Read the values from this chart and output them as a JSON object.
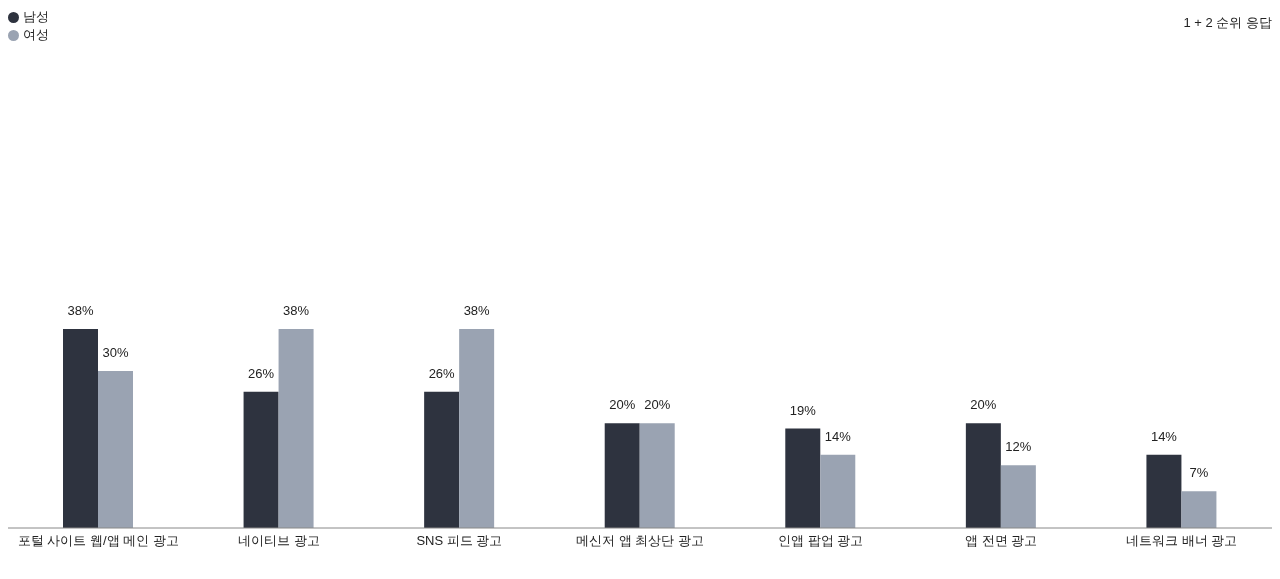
{
  "chart_data": {
    "type": "bar",
    "categories": [
      "포털 사이트 웹/앱 메인 광고",
      "네이티브 광고",
      "SNS 피드 광고",
      "메신저 앱 최상단 광고",
      "인앱 팝업 광고",
      "앱 전면 광고",
      "네트워크 배너 광고"
    ],
    "series": [
      {
        "name": "남성",
        "color": "#2e333f",
        "values": [
          38,
          26,
          26,
          20,
          19,
          20,
          14
        ],
        "value_labels": [
          "38%",
          "26%",
          "26%",
          "20%",
          "19%",
          "20%",
          "14%"
        ]
      },
      {
        "name": "여성",
        "color": "#9aa3b2",
        "values": [
          30,
          38,
          38,
          20,
          14,
          12,
          7
        ],
        "value_labels": [
          "30%",
          "38%",
          "38%",
          "20%",
          "14%",
          "12%",
          "7%"
        ]
      }
    ],
    "legend": "top left",
    "grid": false,
    "annotations": [
      "1 + 2 순위 응답"
    ]
  }
}
